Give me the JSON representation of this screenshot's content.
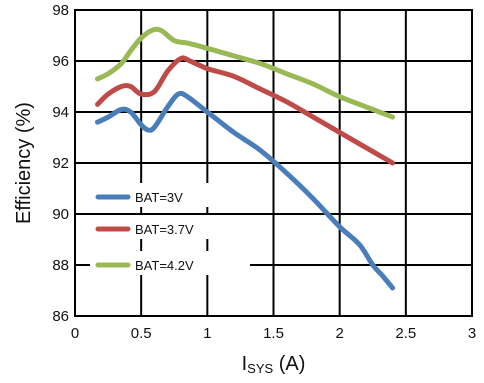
{
  "chart_data": {
    "type": "line",
    "xlabel": "I",
    "xlabel_sub": "SYS",
    "xlabel_unit": " (A)",
    "ylabel": "Efficiency (%)",
    "xlim": [
      0,
      3
    ],
    "ylim": [
      86,
      98
    ],
    "xticks": [
      0,
      0.5,
      1,
      1.5,
      2,
      2.5,
      3
    ],
    "xtick_labels": [
      "0",
      "0.5",
      "1",
      "1.5",
      "2",
      "2.5",
      "3"
    ],
    "yticks": [
      86,
      88,
      90,
      92,
      94,
      96,
      98
    ],
    "ytick_labels": [
      "86",
      "88",
      "90",
      "92",
      "94",
      "96",
      "98"
    ],
    "grid": true,
    "legend_position": "lower-left",
    "series": [
      {
        "name": "BAT=3V",
        "color": "#4a7ebb",
        "points": [
          [
            0.17,
            93.6
          ],
          [
            0.25,
            93.8
          ],
          [
            0.35,
            94.1
          ],
          [
            0.42,
            94.0
          ],
          [
            0.5,
            93.5
          ],
          [
            0.55,
            93.3
          ],
          [
            0.6,
            93.4
          ],
          [
            0.7,
            94.2
          ],
          [
            0.78,
            94.7
          ],
          [
            0.85,
            94.6
          ],
          [
            1.0,
            94.0
          ],
          [
            1.2,
            93.2
          ],
          [
            1.4,
            92.5
          ],
          [
            1.6,
            91.6
          ],
          [
            1.8,
            90.6
          ],
          [
            2.0,
            89.5
          ],
          [
            2.15,
            88.8
          ],
          [
            2.25,
            88.0
          ],
          [
            2.32,
            87.6
          ],
          [
            2.4,
            87.1
          ]
        ]
      },
      {
        "name": "BAT=3.7V",
        "color": "#be4b48",
        "points": [
          [
            0.17,
            94.3
          ],
          [
            0.25,
            94.7
          ],
          [
            0.35,
            95.0
          ],
          [
            0.42,
            95.0
          ],
          [
            0.5,
            94.7
          ],
          [
            0.6,
            94.8
          ],
          [
            0.7,
            95.6
          ],
          [
            0.8,
            96.1
          ],
          [
            0.87,
            96.0
          ],
          [
            1.0,
            95.7
          ],
          [
            1.2,
            95.4
          ],
          [
            1.4,
            94.9
          ],
          [
            1.6,
            94.4
          ],
          [
            1.8,
            93.8
          ],
          [
            2.0,
            93.2
          ],
          [
            2.2,
            92.6
          ],
          [
            2.4,
            92.0
          ]
        ]
      },
      {
        "name": "BAT=4.2V",
        "color": "#98b954",
        "points": [
          [
            0.17,
            95.3
          ],
          [
            0.25,
            95.5
          ],
          [
            0.35,
            95.9
          ],
          [
            0.42,
            96.4
          ],
          [
            0.5,
            96.9
          ],
          [
            0.58,
            97.2
          ],
          [
            0.65,
            97.2
          ],
          [
            0.75,
            96.8
          ],
          [
            0.85,
            96.7
          ],
          [
            1.0,
            96.5
          ],
          [
            1.2,
            96.2
          ],
          [
            1.4,
            95.9
          ],
          [
            1.6,
            95.5
          ],
          [
            1.8,
            95.1
          ],
          [
            2.0,
            94.6
          ],
          [
            2.2,
            94.2
          ],
          [
            2.4,
            93.8
          ]
        ]
      }
    ]
  }
}
